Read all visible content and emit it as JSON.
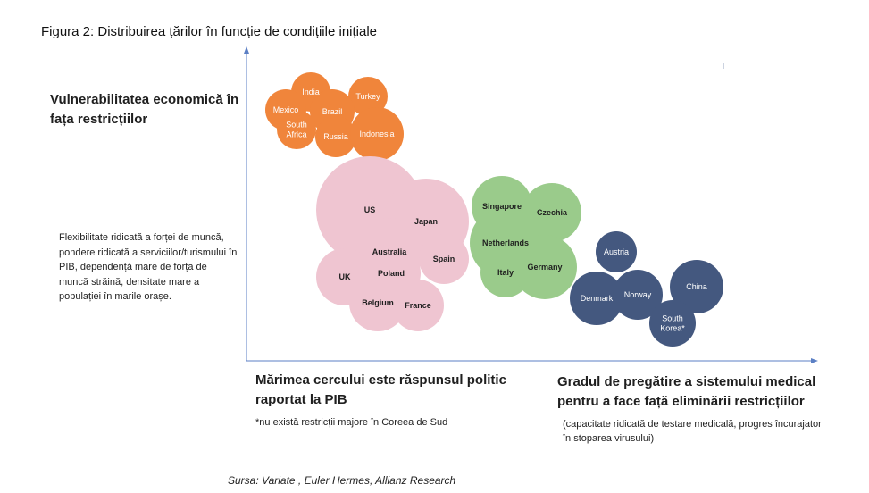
{
  "title": "Figura 2: Distribuirea țărilor în funcție de condițiile inițiale",
  "y_axis_label": "Vulnerabilitatea economică în fața restricțiilor",
  "y_axis_description": "Flexibilitate ridicată a forței de muncă, pondere ridicată a serviciilor/turismului în PIB, dependență mare de forța de muncă străină, densitate mare a populației în marile orașe.",
  "size_legend": "Mărimea cercului este răspunsul politic raportat la PIB",
  "footnote": "*nu există restricții majore în Coreea de Sud",
  "x_axis_label": "Gradul de pregătire a sistemului medical pentru a face față eliminării restricțiilor",
  "x_axis_description": "(capacitate ridicată de testare medicală, progres încurajator în stoparea virusului)",
  "source": "Sursa: Variate , Euler Hermes, Allianz Research",
  "colors": {
    "orange": "#F0853B",
    "pink": "#EFC5D1",
    "green": "#9ACB8B",
    "blue": "#44587F",
    "axis": "#5B7FC4"
  },
  "groups": [
    {
      "name": "orange",
      "countries": [
        {
          "label": "India"
        },
        {
          "label": "Turkey"
        },
        {
          "label": "Mexico"
        },
        {
          "label": "Brazil"
        },
        {
          "label": "South Africa"
        },
        {
          "label": "Russia"
        },
        {
          "label": "Indonesia"
        }
      ]
    },
    {
      "name": "pink",
      "countries": [
        {
          "label": "US"
        },
        {
          "label": "Japan"
        },
        {
          "label": "Australia"
        },
        {
          "label": "Spain"
        },
        {
          "label": "UK"
        },
        {
          "label": "Poland"
        },
        {
          "label": "Belgium"
        },
        {
          "label": "France"
        }
      ]
    },
    {
      "name": "green",
      "countries": [
        {
          "label": "Singapore"
        },
        {
          "label": "Czechia"
        },
        {
          "label": "Netherlands"
        },
        {
          "label": "Italy"
        },
        {
          "label": "Germany"
        }
      ]
    },
    {
      "name": "blue",
      "countries": [
        {
          "label": "Austria"
        },
        {
          "label": "Denmark"
        },
        {
          "label": "Norway"
        },
        {
          "label": "China"
        },
        {
          "label": "South Korea*"
        }
      ]
    }
  ]
}
